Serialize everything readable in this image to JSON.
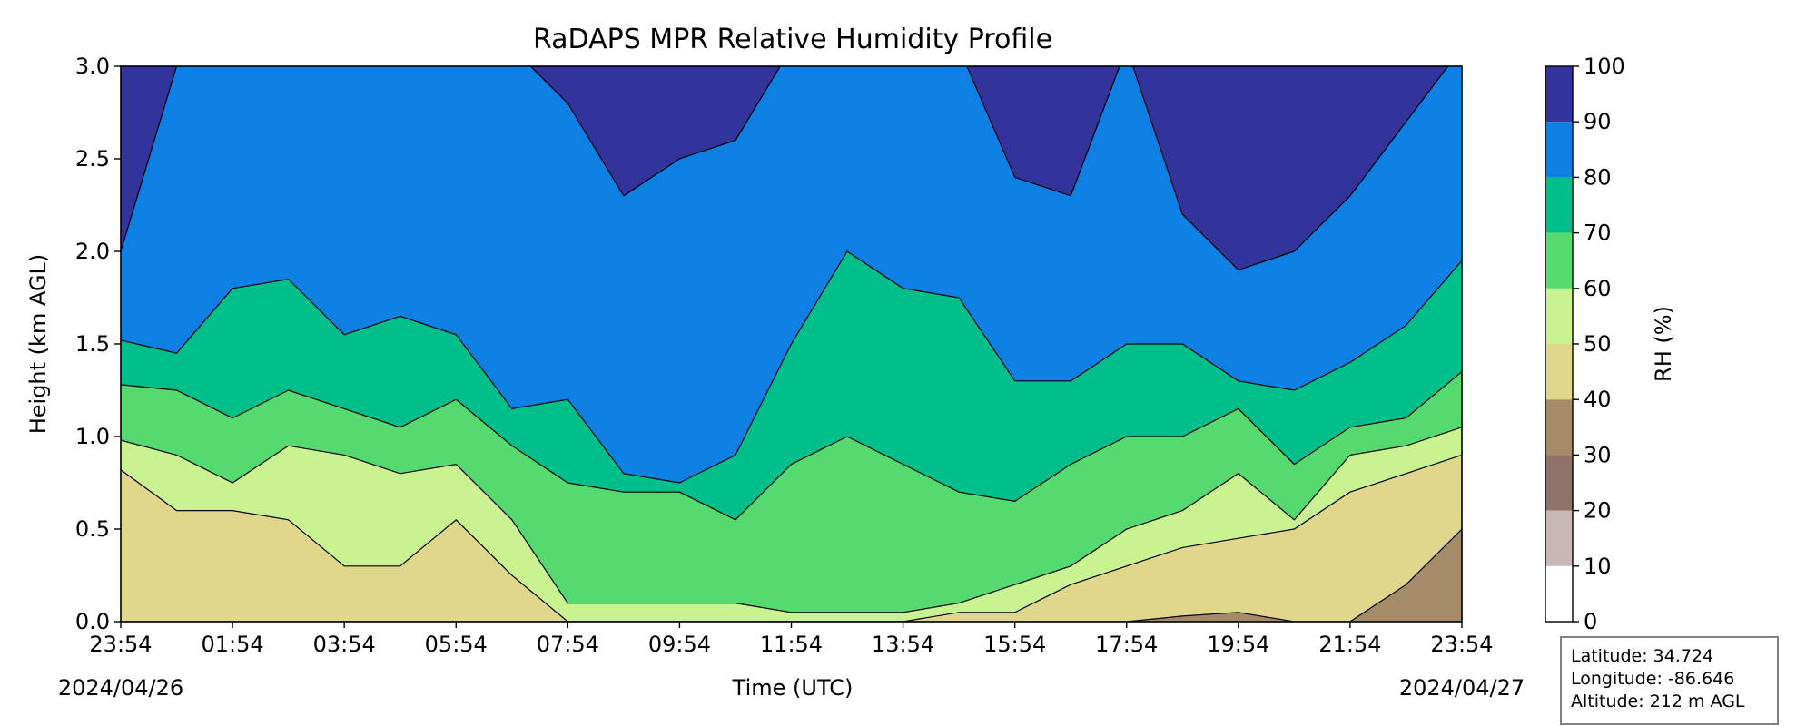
{
  "chart_data": {
    "type": "heatmap",
    "subtype": "filled-contour",
    "title": "RaDAPS MPR Relative Humidity Profile",
    "xlabel": "Time (UTC)",
    "ylabel": "Height (km AGL)",
    "x_ticks": [
      "23:54",
      "01:54",
      "03:54",
      "05:54",
      "07:54",
      "09:54",
      "11:54",
      "13:54",
      "15:54",
      "17:54",
      "19:54",
      "21:54",
      "23:54"
    ],
    "x_range_hours": [
      0,
      24
    ],
    "start_date": "2024/04/26",
    "end_date": "2024/04/27",
    "y_ticks": [
      "0.0",
      "0.5",
      "1.0",
      "1.5",
      "2.0",
      "2.5",
      "3.0"
    ],
    "ylim": [
      0,
      3.0
    ],
    "colorbar": {
      "label": "RH (%)",
      "levels": [
        0,
        10,
        20,
        30,
        40,
        50,
        60,
        70,
        80,
        90,
        100
      ],
      "tick_labels": [
        "0",
        "10",
        "20",
        "30",
        "40",
        "50",
        "60",
        "70",
        "80",
        "90",
        "100"
      ],
      "colors": [
        "#ffffff",
        "#c8b8b4",
        "#8f7268",
        "#a68b68",
        "#e0d78c",
        "#c9f390",
        "#55da70",
        "#00bf8b",
        "#0e80e4",
        "#33349b"
      ]
    },
    "contour_levels_km": {
      "hours": [
        0,
        1,
        2,
        3,
        4,
        5,
        6,
        7,
        8,
        9,
        10,
        11,
        12,
        13,
        14,
        15,
        16,
        17,
        18,
        19,
        20,
        21,
        22,
        23,
        24
      ],
      "rh40": [
        0.0,
        0.0,
        0.0,
        0.0,
        0.0,
        0.0,
        0.0,
        0.0,
        0.0,
        0.0,
        0.0,
        0.0,
        0.0,
        0.0,
        0.0,
        0.0,
        0.0,
        0.0,
        0.0,
        0.03,
        0.05,
        0.0,
        0.0,
        0.2,
        0.5
      ],
      "rh50": [
        0.82,
        0.6,
        0.6,
        0.55,
        0.3,
        0.3,
        0.55,
        0.25,
        0.0,
        0.0,
        0.0,
        0.0,
        0.0,
        0.0,
        0.0,
        0.05,
        0.05,
        0.2,
        0.3,
        0.4,
        0.45,
        0.5,
        0.7,
        0.8,
        0.9
      ],
      "rh60": [
        0.98,
        0.9,
        0.75,
        0.95,
        0.9,
        0.8,
        0.85,
        0.55,
        0.1,
        0.1,
        0.1,
        0.1,
        0.05,
        0.05,
        0.05,
        0.1,
        0.2,
        0.3,
        0.5,
        0.6,
        0.8,
        0.55,
        0.9,
        0.95,
        1.05
      ],
      "rh70": [
        1.28,
        1.25,
        1.1,
        1.25,
        1.15,
        1.05,
        1.2,
        0.95,
        0.75,
        0.7,
        0.7,
        0.55,
        0.85,
        1.0,
        0.85,
        0.7,
        0.65,
        0.85,
        1.0,
        1.0,
        1.15,
        0.85,
        1.05,
        1.1,
        1.35
      ],
      "rh80": [
        1.52,
        1.45,
        1.8,
        1.85,
        1.55,
        1.65,
        1.55,
        1.15,
        1.2,
        0.8,
        0.75,
        0.9,
        1.5,
        2.0,
        1.8,
        1.75,
        1.3,
        1.3,
        1.5,
        1.5,
        1.3,
        1.25,
        1.4,
        1.6,
        1.95
      ],
      "rh90": [
        2.0,
        3.0,
        3.1,
        3.1,
        3.1,
        3.1,
        3.1,
        3.1,
        2.8,
        2.3,
        2.5,
        2.6,
        3.1,
        3.1,
        3.1,
        3.1,
        2.4,
        2.3,
        3.1,
        2.2,
        1.9,
        2.0,
        2.3,
        2.7,
        3.1
      ]
    }
  },
  "info": {
    "latitude": "Latitude: 34.724",
    "longitude": "Longitude: -86.646",
    "altitude": "Altitude: 212 m AGL"
  }
}
